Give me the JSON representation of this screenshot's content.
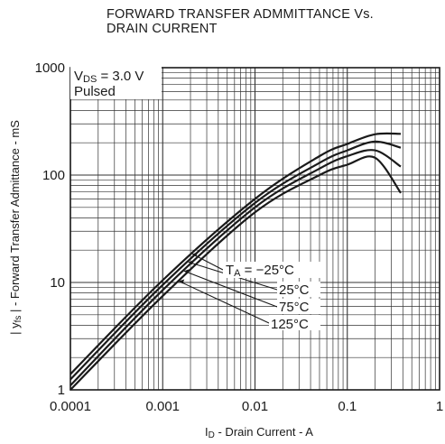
{
  "chart_data": {
    "type": "line",
    "title_line1": "FORWARD TRANSFER ADMMITTANCE Vs.",
    "title_line2": "DRAIN CURRENT",
    "xlabel": "ID - Drain Current - A",
    "xlabel_main": "I",
    "xlabel_sub": "D",
    "xlabel_rest": " - Drain Current - A",
    "ylabel": "| yfs | - Forward Transfer Admittance - mS",
    "ylabel_pre": "| y",
    "ylabel_sub": "fs",
    "ylabel_rest": " | - Forward Transfer Admittance - mS",
    "x_scale": "log",
    "y_scale": "log",
    "xlim": [
      0.0001,
      1
    ],
    "ylim": [
      1,
      1000
    ],
    "grid": true,
    "x_tick_labels": [
      "0.0001",
      "0.001",
      "0.01",
      "0.1",
      "1"
    ],
    "y_tick_labels": [
      "1",
      "10",
      "100",
      "1000"
    ],
    "conditions": {
      "line1_main": "V",
      "line1_sub": "DS",
      "line1_rest": " = 3.0 V",
      "line2": "Pulsed"
    },
    "series": [
      {
        "name": "TA = −25°C",
        "label": "TA = −25°C",
        "label_main": "T",
        "label_sub": "A",
        "label_rest": " = −25°C",
        "x": [
          0.0001,
          0.001,
          0.01,
          0.05,
          0.1,
          0.2,
          0.38
        ],
        "y": [
          1.4,
          10.5,
          60,
          150,
          195,
          240,
          242
        ]
      },
      {
        "name": "25°C",
        "label": "25°C",
        "x": [
          0.0001,
          0.001,
          0.01,
          0.05,
          0.1,
          0.2,
          0.38
        ],
        "y": [
          1.25,
          9.5,
          55,
          130,
          170,
          205,
          180
        ]
      },
      {
        "name": "75°C",
        "label": "75°C",
        "x": [
          0.0001,
          0.001,
          0.01,
          0.05,
          0.1,
          0.2,
          0.38
        ],
        "y": [
          1.1,
          8.5,
          50,
          115,
          150,
          170,
          120
        ]
      },
      {
        "name": "125°C",
        "label": "125°C",
        "x": [
          0.0001,
          0.001,
          0.01,
          0.05,
          0.1,
          0.2,
          0.38
        ],
        "y": [
          1.0,
          7.5,
          45,
          100,
          125,
          145,
          68
        ]
      }
    ]
  }
}
